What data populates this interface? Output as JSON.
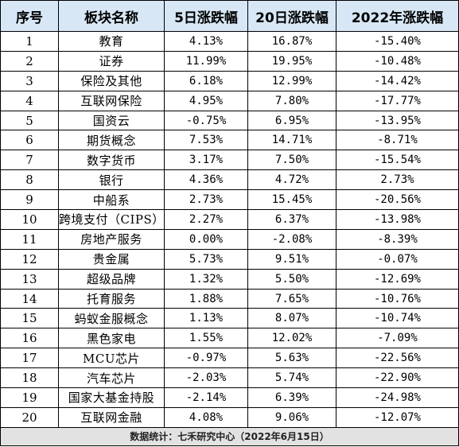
{
  "headers": [
    "序号",
    "板块名称",
    "5日涨跌幅",
    "20日涨跌幅",
    "2022年涨跌幅"
  ],
  "rows": [
    {
      "idx": "1",
      "name": "教育",
      "d5": "4.13%",
      "d20": "16.87%",
      "ytd": "-15.40%"
    },
    {
      "idx": "2",
      "name": "证券",
      "d5": "11.99%",
      "d20": "19.95%",
      "ytd": "-10.48%"
    },
    {
      "idx": "3",
      "name": "保险及其他",
      "d5": "6.18%",
      "d20": "12.99%",
      "ytd": "-14.42%"
    },
    {
      "idx": "4",
      "name": "互联网保险",
      "d5": "4.95%",
      "d20": "7.80%",
      "ytd": "-17.77%"
    },
    {
      "idx": "5",
      "name": "国资云",
      "d5": "-0.75%",
      "d20": "6.95%",
      "ytd": "-13.95%"
    },
    {
      "idx": "6",
      "name": "期货概念",
      "d5": "7.53%",
      "d20": "14.71%",
      "ytd": "-8.71%"
    },
    {
      "idx": "7",
      "name": "数字货币",
      "d5": "3.17%",
      "d20": "7.50%",
      "ytd": "-15.54%"
    },
    {
      "idx": "8",
      "name": "银行",
      "d5": "4.36%",
      "d20": "4.72%",
      "ytd": "2.73%"
    },
    {
      "idx": "9",
      "name": "中船系",
      "d5": "2.73%",
      "d20": "15.45%",
      "ytd": "-20.56%"
    },
    {
      "idx": "10",
      "name": "跨境支付（CIPS）",
      "d5": "2.27%",
      "d20": "6.37%",
      "ytd": "-13.98%"
    },
    {
      "idx": "11",
      "name": "房地产服务",
      "d5": "0.00%",
      "d20": "-2.08%",
      "ytd": "-8.39%"
    },
    {
      "idx": "12",
      "name": "贵金属",
      "d5": "5.73%",
      "d20": "9.51%",
      "ytd": "-0.07%"
    },
    {
      "idx": "13",
      "name": "超级品牌",
      "d5": "1.32%",
      "d20": "5.50%",
      "ytd": "-12.69%"
    },
    {
      "idx": "14",
      "name": "托育服务",
      "d5": "1.88%",
      "d20": "7.65%",
      "ytd": "-10.76%"
    },
    {
      "idx": "15",
      "name": "蚂蚁金服概念",
      "d5": "1.13%",
      "d20": "8.07%",
      "ytd": "-10.74%"
    },
    {
      "idx": "16",
      "name": "黑色家电",
      "d5": "1.55%",
      "d20": "12.02%",
      "ytd": "-7.09%"
    },
    {
      "idx": "17",
      "name": "MCU芯片",
      "d5": "-0.97%",
      "d20": "5.63%",
      "ytd": "-22.56%"
    },
    {
      "idx": "18",
      "name": "汽车芯片",
      "d5": "-2.03%",
      "d20": "5.74%",
      "ytd": "-22.90%"
    },
    {
      "idx": "19",
      "name": "国家大基金持股",
      "d5": "-2.14%",
      "d20": "6.39%",
      "ytd": "-24.98%"
    },
    {
      "idx": "20",
      "name": "互联网金融",
      "d5": "4.08%",
      "d20": "9.06%",
      "ytd": "-12.07%"
    }
  ],
  "footer": "数据统计：七禾研究中心（2022年6月15日）",
  "colors": {
    "header_bg": "#d7e7f5",
    "footer_bg": "#e2e2e2",
    "border": "#000000"
  }
}
